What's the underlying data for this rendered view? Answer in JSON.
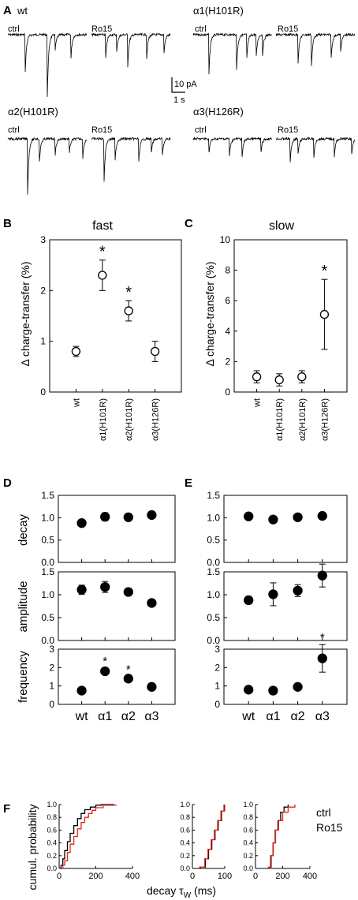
{
  "panel_a": {
    "label": "A",
    "traces": [
      {
        "genotype": "wt",
        "conditions": [
          "ctrl",
          "Ro15"
        ]
      },
      {
        "genotype": "α1(H101R)",
        "conditions": [
          "ctrl",
          "Ro15"
        ]
      },
      {
        "genotype": "α2(H101R)",
        "conditions": [
          "ctrl",
          "Ro15"
        ]
      },
      {
        "genotype": "α3(H126R)",
        "conditions": [
          "ctrl",
          "Ro15"
        ]
      }
    ],
    "scale_y": "10 pA",
    "scale_x": "1 s"
  },
  "chart_data": [
    {
      "id": "B",
      "type": "scatter",
      "panel_label": "B",
      "title": "fast",
      "ylabel": "Δ charge-transfer (%)",
      "categories": [
        "wt",
        "α1(H101R)",
        "α2(H101R)",
        "α3(H126R)"
      ],
      "values": [
        0.8,
        2.3,
        1.6,
        0.8
      ],
      "errors": [
        0.1,
        0.3,
        0.2,
        0.2
      ],
      "significant": [
        false,
        true,
        true,
        false
      ],
      "ylim": [
        0,
        3
      ],
      "yticks": [
        0,
        1,
        2,
        3
      ]
    },
    {
      "id": "C",
      "type": "scatter",
      "panel_label": "C",
      "title": "slow",
      "ylabel": "Δ charge-transfer (%)",
      "categories": [
        "wt",
        "α1(H101R)",
        "α2(H101R)",
        "α3(H126R)"
      ],
      "values": [
        1.0,
        0.8,
        1.0,
        5.1
      ],
      "errors": [
        0.4,
        0.4,
        0.4,
        2.3
      ],
      "significant": [
        false,
        false,
        false,
        true
      ],
      "ylim": [
        0,
        10
      ],
      "yticks": [
        0,
        2,
        4,
        6,
        8,
        10
      ]
    },
    {
      "id": "D",
      "type": "scatter",
      "panel_label": "D",
      "categories": [
        "wt",
        "α1",
        "α2",
        "α3"
      ],
      "subplots": [
        {
          "ylabel": "decay",
          "values": [
            0.88,
            1.02,
            1.01,
            1.06
          ],
          "errors": [
            0.0,
            0.09,
            0.07,
            0.05
          ],
          "significant": [
            false,
            false,
            false,
            false
          ],
          "ylim": [
            0.0,
            1.5
          ],
          "yticks": [
            0.0,
            0.5,
            1.0,
            1.5
          ]
        },
        {
          "ylabel": "amplitude",
          "values": [
            1.11,
            1.17,
            1.06,
            0.82
          ],
          "errors": [
            0.1,
            0.12,
            0.0,
            0.07
          ],
          "significant": [
            false,
            false,
            false,
            false
          ],
          "ylim": [
            0.0,
            1.5
          ],
          "yticks": [
            0.0,
            0.5,
            1.0,
            1.5
          ]
        },
        {
          "ylabel": "frequency",
          "values": [
            0.75,
            1.8,
            1.4,
            0.95
          ],
          "errors": [
            0.12,
            0.18,
            0.12,
            0.18
          ],
          "significant": [
            false,
            true,
            true,
            false
          ],
          "ylim": [
            0,
            3
          ],
          "yticks": [
            0,
            1,
            2,
            3
          ]
        }
      ]
    },
    {
      "id": "E",
      "type": "scatter",
      "panel_label": "E",
      "categories": [
        "wt",
        "α1",
        "α2",
        "α3"
      ],
      "subplots": [
        {
          "values": [
            1.03,
            0.96,
            1.01,
            1.04
          ],
          "errors": [
            0.07,
            0.07,
            0.06,
            0.0
          ],
          "significant": [
            false,
            false,
            false,
            false
          ],
          "ylim": [
            0.0,
            1.5
          ],
          "yticks": [
            0.0,
            0.5,
            1.0,
            1.5
          ]
        },
        {
          "values": [
            0.88,
            1.01,
            1.09,
            1.42
          ],
          "errors": [
            0.08,
            0.25,
            0.13,
            0.25
          ],
          "significant": [
            false,
            false,
            false,
            false
          ],
          "ylim": [
            0.0,
            1.5
          ],
          "yticks": [
            0.0,
            0.5,
            1.0,
            1.5
          ]
        },
        {
          "values": [
            0.8,
            0.75,
            0.95,
            2.5
          ],
          "errors": [
            0.0,
            0.2,
            0.0,
            0.75
          ],
          "significant": [
            false,
            false,
            false,
            true
          ],
          "ylim": [
            0,
            3
          ],
          "yticks": [
            0,
            1,
            2,
            3
          ]
        }
      ]
    },
    {
      "id": "F",
      "type": "line",
      "panel_label": "F",
      "ylabel": "cumul.  probability",
      "xlabel": "decay τ",
      "xlabel_sub": "W",
      "xlabel_unit": " (ms)",
      "legend": {
        "position": "top-right",
        "entries": [
          {
            "name": "ctrl",
            "color": "#000000"
          },
          {
            "name": "Ro15",
            "color": "#e8231f"
          }
        ]
      },
      "subplots": [
        {
          "xlim": [
            0,
            400
          ],
          "xticks": [
            0,
            200,
            400
          ],
          "ylim": [
            0,
            1
          ],
          "yticks": [
            0.0,
            0.2,
            0.4,
            0.6,
            0.8,
            1.0
          ],
          "series": [
            {
              "name": "ctrl",
              "x": [
                10,
                20,
                30,
                45,
                60,
                80,
                100,
                120,
                140,
                170,
                200,
                230,
                300
              ],
              "y": [
                0.05,
                0.15,
                0.28,
                0.42,
                0.55,
                0.67,
                0.78,
                0.86,
                0.92,
                0.96,
                0.99,
                1.0,
                1.0
              ]
            },
            {
              "name": "Ro15",
              "x": [
                20,
                30,
                45,
                60,
                80,
                100,
                120,
                140,
                160,
                180,
                200,
                240,
                310
              ],
              "y": [
                0.05,
                0.12,
                0.25,
                0.38,
                0.5,
                0.62,
                0.72,
                0.8,
                0.86,
                0.91,
                0.95,
                0.99,
                1.0
              ]
            }
          ]
        },
        {
          "xlim": [
            0,
            100
          ],
          "xticks": [
            0,
            100
          ],
          "ylim": [
            0,
            1
          ],
          "yticks": [
            0.0,
            0.2,
            0.4,
            0.6,
            0.8,
            1.0
          ],
          "series": [
            {
              "name": "ctrl",
              "x": [
                25,
                40,
                50,
                60,
                70,
                80,
                90,
                98
              ],
              "y": [
                0.02,
                0.15,
                0.3,
                0.45,
                0.6,
                0.75,
                0.9,
                1.0
              ]
            },
            {
              "name": "Ro15",
              "x": [
                22,
                38,
                48,
                58,
                68,
                78,
                88,
                100
              ],
              "y": [
                0.02,
                0.15,
                0.3,
                0.45,
                0.6,
                0.75,
                0.9,
                1.0
              ]
            }
          ]
        },
        {
          "xlim": [
            0,
            400
          ],
          "xticks": [
            0,
            200,
            400
          ],
          "ylim": [
            0,
            1
          ],
          "yticks": [
            0.0,
            0.2,
            0.4,
            0.6,
            0.8,
            1.0
          ],
          "series": [
            {
              "name": "ctrl",
              "x": [
                100,
                115,
                130,
                145,
                165,
                185,
                210,
                240
              ],
              "y": [
                0.02,
                0.2,
                0.4,
                0.6,
                0.75,
                0.88,
                0.96,
                1.0
              ]
            },
            {
              "name": "Ro15",
              "x": [
                95,
                110,
                128,
                148,
                170,
                200,
                240,
                290
              ],
              "y": [
                0.02,
                0.2,
                0.4,
                0.6,
                0.75,
                0.88,
                0.96,
                1.0
              ]
            }
          ]
        }
      ]
    }
  ]
}
